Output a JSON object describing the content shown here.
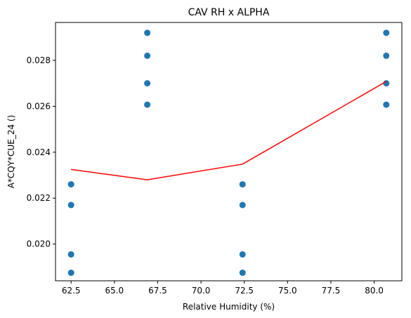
{
  "chart_data": {
    "type": "scatter",
    "title": "CAV RH x ALPHA",
    "xlabel": "Relative Humidity (%)",
    "ylabel": "A*CQY*CUE_24 ()",
    "xlim": [
      61.6,
      81.6
    ],
    "ylim": [
      0.0184,
      0.02965
    ],
    "xticks": [
      62.5,
      65.0,
      67.5,
      70.0,
      72.5,
      75.0,
      77.5,
      80.0
    ],
    "xtick_labels": [
      "62.5",
      "65.0",
      "67.5",
      "70.0",
      "72.5",
      "75.0",
      "77.5",
      "80.0"
    ],
    "yticks": [
      0.02,
      0.022,
      0.024,
      0.026,
      0.028
    ],
    "ytick_labels": [
      "0.020",
      "0.022",
      "0.024",
      "0.026",
      "0.028"
    ],
    "grid": false,
    "series": [
      {
        "type": "scatter",
        "color": "#1f77b4",
        "points": [
          {
            "x": 62.5,
            "y": 0.0226
          },
          {
            "x": 62.5,
            "y": 0.0217
          },
          {
            "x": 62.5,
            "y": 0.01955
          },
          {
            "x": 62.5,
            "y": 0.01875
          },
          {
            "x": 66.9,
            "y": 0.0292
          },
          {
            "x": 66.9,
            "y": 0.0282
          },
          {
            "x": 66.9,
            "y": 0.027
          },
          {
            "x": 66.9,
            "y": 0.02607
          },
          {
            "x": 72.4,
            "y": 0.0226
          },
          {
            "x": 72.4,
            "y": 0.0217
          },
          {
            "x": 72.4,
            "y": 0.01955
          },
          {
            "x": 72.4,
            "y": 0.01875
          },
          {
            "x": 80.7,
            "y": 0.0292
          },
          {
            "x": 80.7,
            "y": 0.0282
          },
          {
            "x": 80.7,
            "y": 0.027
          },
          {
            "x": 80.7,
            "y": 0.02607
          }
        ]
      },
      {
        "type": "line",
        "color": "#ff0000",
        "x": [
          62.5,
          66.9,
          72.4,
          80.7
        ],
        "y": [
          0.02325,
          0.0228,
          0.02348,
          0.02708
        ]
      }
    ]
  }
}
